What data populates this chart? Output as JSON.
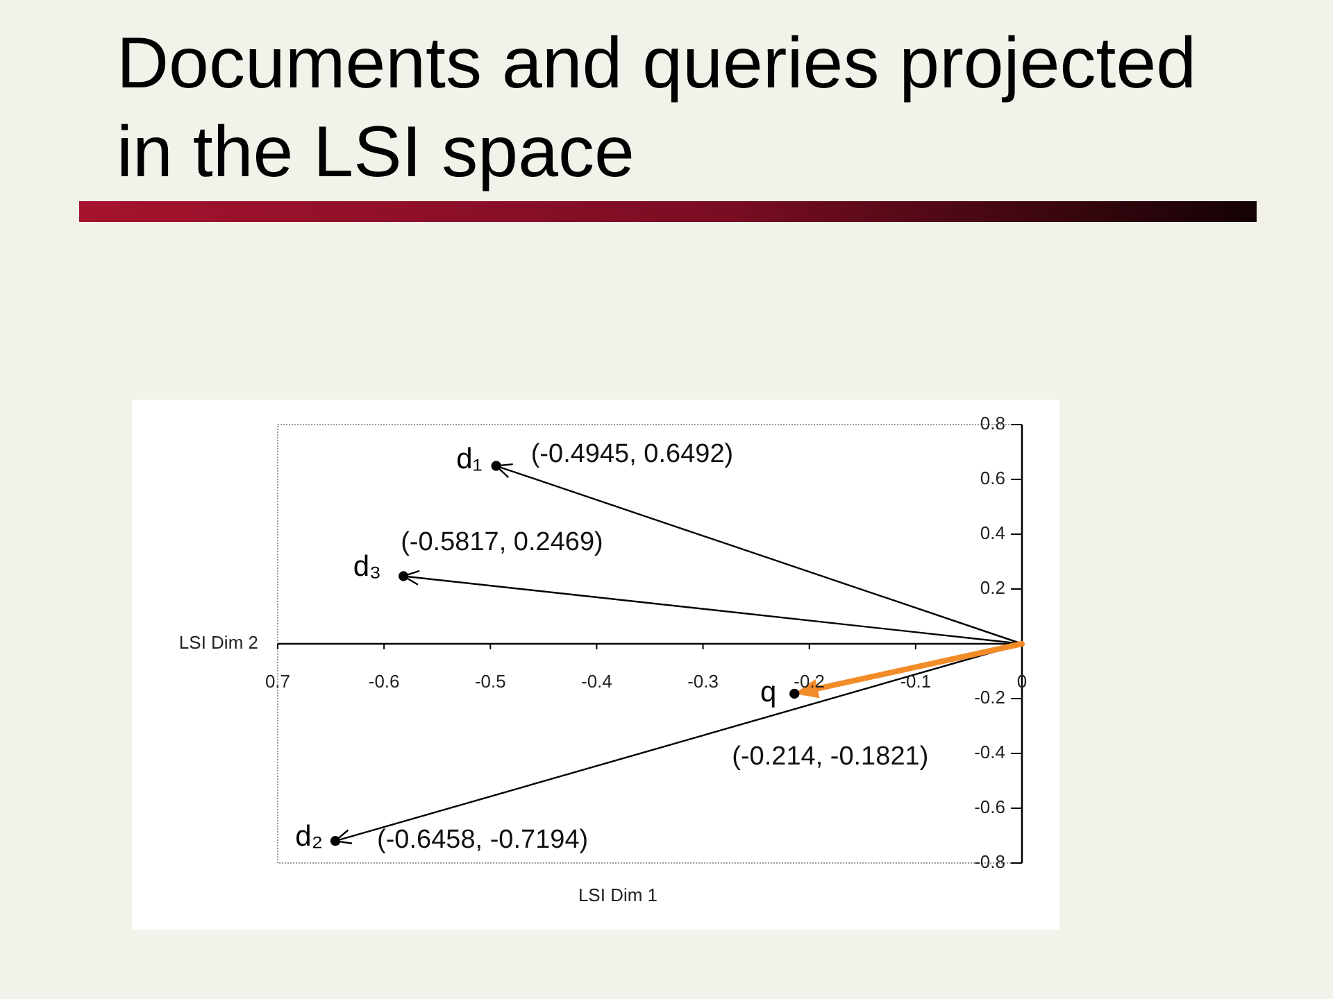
{
  "chart_data": {
    "type": "scatter",
    "title": "Documents and queries projected in the LSI space",
    "xlabel": "LSI Dim 1",
    "ylabel": "LSI Dim 2",
    "xlim": [
      -0.7,
      0
    ],
    "ylim": [
      -0.8,
      0.8
    ],
    "xticks": [
      {
        "value": -0.7,
        "label": "0.7"
      },
      -0.6,
      -0.5,
      -0.4,
      -0.3,
      -0.2,
      -0.1,
      0
    ],
    "yticks": [
      -0.8,
      -0.6,
      -0.4,
      -0.2,
      0.2,
      0.4,
      0.6,
      0.8
    ],
    "series": [
      {
        "color": "#000000",
        "marker": "circle",
        "x": [
          -0.4945,
          -0.5817,
          -0.6458,
          -0.214
        ],
        "values": [
          0.6492,
          0.2469,
          -0.7194,
          -0.1821
        ],
        "value_labels": [
          "(-0.4945, 0.6492)",
          "(-0.5817, 0.2469)",
          "(-0.6458, -0.7194)",
          "(-0.214, -0.1821)"
        ]
      }
    ],
    "annotations": [
      {
        "text": "d₁",
        "x": -0.4945,
        "y": 0.6492
      },
      {
        "text": "d₃",
        "x": -0.5817,
        "y": 0.2469
      },
      {
        "text": "d₂",
        "x": -0.6458,
        "y": -0.7194
      },
      {
        "text": "q",
        "x": -0.214,
        "y": -0.1821
      }
    ]
  }
}
